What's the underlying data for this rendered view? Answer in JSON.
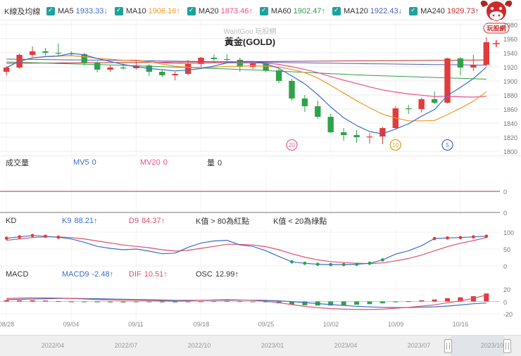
{
  "legend": {
    "title": "K線及均線",
    "items": [
      {
        "label": "MA5",
        "value": "1933.33↓",
        "color": "#3b6fc9"
      },
      {
        "label": "MA10",
        "value": "1906.16↑",
        "color": "#f09a1f"
      },
      {
        "label": "MA20",
        "value": "1873.46↑",
        "color": "#ef4f8e"
      },
      {
        "label": "MA60",
        "value": "1902.47↑",
        "color": "#2f9e44"
      },
      {
        "label": "MA120",
        "value": "1922.43↓",
        "color": "#4a5fc1"
      },
      {
        "label": "MA240",
        "value": "1929.73↑",
        "color": "#c92a2a"
      }
    ]
  },
  "logo": {
    "text": "玩股網"
  },
  "chart": {
    "watermark": "WantGoo 玩股網",
    "title": "黃金(GOLD)"
  },
  "volume_header": {
    "label": "成交量",
    "mv5_label": "MV5",
    "mv5_value": "0",
    "mv20_label": "MV20",
    "mv20_value": "0",
    "vol_label": "量",
    "vol_value": "0"
  },
  "kd_header": {
    "label": "KD",
    "k9_label": "K9",
    "k9_value": "88.21↑",
    "d9_label": "D9",
    "d9_value": "84.37↑",
    "hint1": "K值 > 80為紅點",
    "hint2": "K值 < 20為綠點"
  },
  "macd_header": {
    "label": "MACD",
    "macd9_label": "MACD9",
    "macd9_value": "-2.48↑",
    "dif_label": "DIF",
    "dif_value": "10.51↑",
    "osc_label": "OSC",
    "osc_value": "12.99↑"
  },
  "timeline": {
    "labels": [
      "2022/04",
      "2022/07",
      "2022/10",
      "2023/01",
      "2023/04",
      "2023/07",
      "2023/10"
    ]
  },
  "chart_data": {
    "type": "candlestick+indicators",
    "symbol": "黃金(GOLD)",
    "price_axis": [
      1980,
      1960,
      1940,
      1920,
      1900,
      1880,
      1860,
      1840,
      1820,
      1800
    ],
    "candles": [
      [
        "08/28",
        1913,
        1921,
        1908,
        1919
      ],
      [
        "08/29",
        1919,
        1939,
        1917,
        1937
      ],
      [
        "08/30",
        1937,
        1949,
        1934,
        1942
      ],
      [
        "08/31",
        1942,
        1947,
        1936,
        1940
      ],
      [
        "09/01",
        1940,
        1953,
        1936,
        1939
      ],
      [
        "09/04",
        1939,
        1942,
        1935,
        1938
      ],
      [
        "09/05",
        1938,
        1940,
        1922,
        1926
      ],
      [
        "09/06",
        1926,
        1928,
        1912,
        1916
      ],
      [
        "09/07",
        1916,
        1922,
        1913,
        1919
      ],
      [
        "09/08",
        1919,
        1925,
        1916,
        1918
      ],
      [
        "09/11",
        1918,
        1930,
        1916,
        1922
      ],
      [
        "09/12",
        1922,
        1924,
        1907,
        1913
      ],
      [
        "09/13",
        1913,
        1916,
        1905,
        1908
      ],
      [
        "09/14",
        1908,
        1913,
        1901,
        1910
      ],
      [
        "09/15",
        1910,
        1930,
        1908,
        1924
      ],
      [
        "09/18",
        1924,
        1934,
        1920,
        1933
      ],
      [
        "09/19",
        1933,
        1938,
        1926,
        1931
      ],
      [
        "09/20",
        1931,
        1938,
        1927,
        1930
      ],
      [
        "09/21",
        1930,
        1933,
        1913,
        1920
      ],
      [
        "09/22",
        1920,
        1928,
        1917,
        1925
      ],
      [
        "09/25",
        1925,
        1927,
        1912,
        1915
      ],
      [
        "09/26",
        1915,
        1917,
        1897,
        1900
      ],
      [
        "09/27",
        1900,
        1903,
        1872,
        1875
      ],
      [
        "09/28",
        1875,
        1880,
        1856,
        1864
      ],
      [
        "09/29",
        1864,
        1872,
        1846,
        1849
      ],
      [
        "10/02",
        1849,
        1853,
        1826,
        1827
      ],
      [
        "10/03",
        1827,
        1833,
        1815,
        1823
      ],
      [
        "10/04",
        1823,
        1830,
        1812,
        1820
      ],
      [
        "10/05",
        1820,
        1826,
        1811,
        1821
      ],
      [
        "10/06",
        1821,
        1835,
        1810,
        1833
      ],
      [
        "10/09",
        1833,
        1864,
        1831,
        1861
      ],
      [
        "10/10",
        1861,
        1866,
        1853,
        1860
      ],
      [
        "10/11",
        1860,
        1876,
        1855,
        1874
      ],
      [
        "10/12",
        1874,
        1885,
        1867,
        1869
      ],
      [
        "10/13",
        1869,
        1933,
        1868,
        1932
      ],
      [
        "10/16",
        1932,
        1934,
        1908,
        1919
      ],
      [
        "10/17",
        1919,
        1937,
        1914,
        1923
      ],
      [
        "10/18",
        1923,
        1962,
        1921,
        1955
      ]
    ],
    "ma_displayed": {
      "ma5": 1933.33,
      "ma10": 1906.16,
      "ma20": 1873.46,
      "ma60": 1902.47,
      "ma120": 1922.43,
      "ma240": 1929.73
    },
    "ma_keypoints": {
      "ma60": [
        1927,
        1922,
        1916,
        1908,
        1902.5
      ],
      "ma120": [
        1931,
        1929,
        1926.8,
        1924.5,
        1922.4
      ],
      "ma240": [
        1925,
        1926.2,
        1927.4,
        1928.6,
        1929.7
      ]
    },
    "kd": {
      "axis": [
        100,
        50,
        0
      ],
      "k_value": 88.21,
      "d_value": 84.37,
      "k": [
        82,
        86,
        90,
        88,
        85,
        80,
        70,
        58,
        52,
        48,
        50,
        44,
        36,
        38,
        55,
        68,
        74,
        76,
        62,
        58,
        45,
        28,
        12,
        8,
        5,
        4,
        4,
        5,
        8,
        18,
        35,
        45,
        60,
        81,
        83,
        84,
        86,
        88
      ],
      "d": [
        76,
        80,
        84,
        86,
        86,
        84,
        80,
        74,
        68,
        62,
        58,
        54,
        48,
        44,
        46,
        52,
        58,
        64,
        64,
        62,
        57,
        48,
        36,
        26,
        18,
        13,
        10,
        8,
        7,
        9,
        15,
        22,
        32,
        45,
        57,
        67,
        75,
        84
      ],
      "hi_threshold": 80,
      "lo_threshold": 20
    },
    "macd": {
      "axis": [
        20,
        0,
        -20
      ],
      "macd9_value": -2.48,
      "dif_value": 10.51,
      "osc_value": 12.99,
      "dif": [
        5,
        5.5,
        6,
        6,
        5.5,
        5,
        4,
        3,
        2.5,
        2,
        2,
        1.5,
        1,
        0.5,
        1,
        2,
        2.5,
        3,
        2.5,
        2,
        0.5,
        -2,
        -5,
        -8,
        -10,
        -11.5,
        -12.5,
        -13,
        -13,
        -12.5,
        -11,
        -9.5,
        -7.5,
        -5.5,
        -2,
        1,
        5,
        10.5
      ],
      "macd9": [
        3,
        3.5,
        4,
        4.5,
        5,
        5,
        4.8,
        4.4,
        4,
        3.6,
        3.2,
        2.8,
        2.4,
        2,
        1.8,
        1.8,
        2,
        2.2,
        2.2,
        2.2,
        1.8,
        1,
        -0.2,
        -1.8,
        -3.4,
        -5,
        -6.5,
        -7.8,
        -8.8,
        -9.5,
        -9.8,
        -9.8,
        -9.4,
        -8.7,
        -7.4,
        -5.7,
        -3.6,
        -2.5
      ]
    },
    "volume": {
      "mv5": 0,
      "mv20": 0,
      "vol": 0,
      "axis": [
        "0",
        "0"
      ]
    },
    "markers": [
      {
        "label": "20",
        "index": 22,
        "price": 1809,
        "color": "#e0679a"
      },
      {
        "label": "10",
        "index": 30,
        "price": 1809,
        "color": "#d8a520"
      },
      {
        "label": "5",
        "index": 34,
        "price": 1809,
        "color": "#4a6fc0"
      }
    ],
    "cursor": {
      "price": 1953,
      "color": "#e23b3b"
    },
    "date_labels": [
      {
        "label": "08/28",
        "index": 0
      },
      {
        "label": "09/04",
        "index": 5
      },
      {
        "label": "09/11",
        "index": 10
      },
      {
        "label": "09/18",
        "index": 15
      },
      {
        "label": "09/25",
        "index": 20
      },
      {
        "label": "10/02",
        "index": 25
      },
      {
        "label": "10/09",
        "index": 30
      },
      {
        "label": "10/16",
        "index": 35
      }
    ],
    "colors": {
      "up": "#e23b3b",
      "down": "#2fa24a",
      "ma5": "#3b6fc9",
      "ma10": "#f09a1f",
      "ma20": "#ef4f8e",
      "ma60": "#2f9e44",
      "ma120": "#4a5fc1",
      "ma240": "#c92a2a",
      "k": "#3b6fc9",
      "d": "#e0506e",
      "dif": "#e0506e",
      "macd9": "#3b6fc9",
      "mv": "#993366",
      "dot_hi": "#e23b3b",
      "dot_lo": "#2fa24a"
    }
  }
}
